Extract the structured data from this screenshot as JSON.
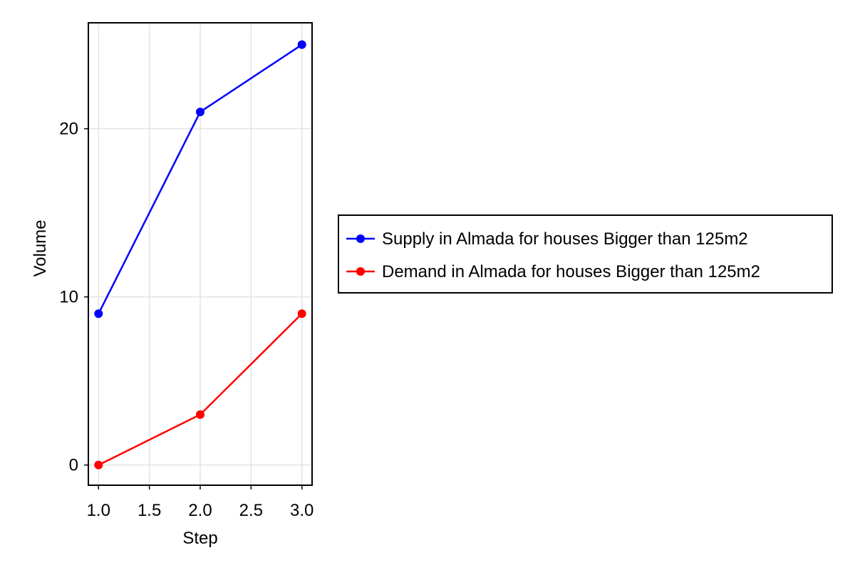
{
  "chart_data": {
    "type": "line",
    "xlabel": "Step",
    "ylabel": "Volume",
    "x": [
      1.0,
      2.0,
      3.0
    ],
    "xticks": [
      "1.0",
      "1.5",
      "2.0",
      "2.5",
      "3.0"
    ],
    "xtick_values": [
      1.0,
      1.5,
      2.0,
      2.5,
      3.0
    ],
    "yticks": [
      "0",
      "10",
      "20"
    ],
    "ytick_values": [
      0,
      10,
      20
    ],
    "xlim": [
      0.9,
      3.1
    ],
    "ylim": [
      -1.2,
      26.3
    ],
    "grid": true,
    "legend_position": "right",
    "series": [
      {
        "name": "Supply in Almada for houses Bigger than 125m2",
        "color": "#0000ff",
        "values": [
          9,
          21,
          25
        ]
      },
      {
        "name": "Demand in Almada for houses Bigger than 125m2",
        "color": "#ff0000",
        "values": [
          0,
          3,
          9
        ]
      }
    ]
  }
}
